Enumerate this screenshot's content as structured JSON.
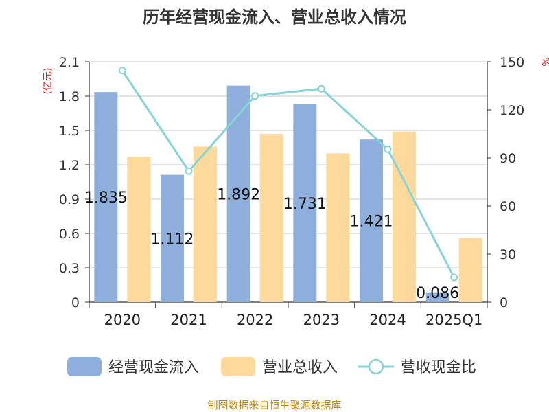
{
  "title": "历年经营现金流入、营业总收入情况",
  "source": "制图数据来自恒生聚源数据库",
  "chart_data": {
    "type": "bar",
    "categories": [
      "2020",
      "2021",
      "2022",
      "2023",
      "2024",
      "2025Q1"
    ],
    "series": [
      {
        "name": "经营现金流入",
        "type": "bar",
        "axis": "left",
        "color": "#8eaedb",
        "values": [
          1.835,
          1.112,
          1.892,
          1.731,
          1.421,
          0.086
        ],
        "labels": [
          "1.835",
          "1.112",
          "1.892",
          "1.731",
          "1.421",
          "0.086"
        ]
      },
      {
        "name": "营业总收入",
        "type": "bar",
        "axis": "left",
        "color": "#fdd99b",
        "values": [
          1.27,
          1.36,
          1.47,
          1.3,
          1.49,
          0.56
        ]
      },
      {
        "name": "营收现金比",
        "type": "line",
        "axis": "right",
        "color": "#88d3d6",
        "values": [
          144.5,
          81.8,
          128.7,
          133.2,
          95.4,
          15.4
        ]
      }
    ],
    "yleft": {
      "unit": "(亿元)",
      "ylim": [
        0,
        2.1
      ],
      "ticks": [
        "0",
        "0.3",
        "0.6",
        "0.9",
        "1.2",
        "1.5",
        "1.8",
        "2.1"
      ]
    },
    "yright": {
      "unit": "%",
      "ylim": [
        0,
        150
      ],
      "ticks": [
        "0",
        "30",
        "60",
        "90",
        "120",
        "150"
      ]
    },
    "grid": true,
    "legend_position": "bottom"
  }
}
